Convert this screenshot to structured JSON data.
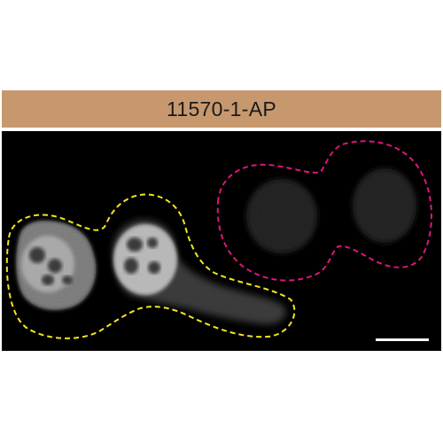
{
  "panel": {
    "antibody_label": "11570-1-AP"
  },
  "colors": {
    "header_band": "#c7986e",
    "background": "#000000",
    "outline_stained_cells": "#f2e41f",
    "outline_unstained_cells": "#e0147a",
    "scale_bar": "#ffffff"
  }
}
